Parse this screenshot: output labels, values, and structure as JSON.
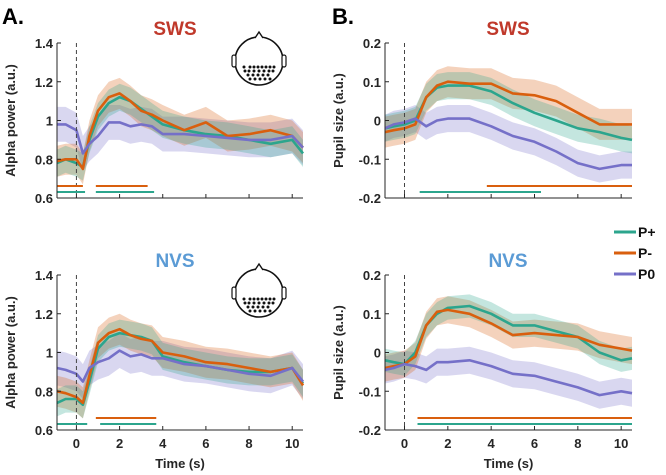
{
  "colors": {
    "P+": "#2ca58d",
    "P-": "#d95f0e",
    "P0": "#7570c8",
    "sws_title": "#c0392b",
    "nvs_title": "#5b9bd5"
  },
  "panel_labels": [
    "A.",
    "B."
  ],
  "legend": {
    "items": [
      {
        "name": "P+"
      },
      {
        "name": "P-"
      },
      {
        "name": "P0"
      }
    ],
    "position": "right-middle"
  },
  "chart_data": [
    {
      "id": "A-SWS",
      "type": "line",
      "title": "SWS",
      "xlabel": "",
      "ylabel": "Alpha power (a.u.)",
      "xlim": [
        -0.9,
        10.5
      ],
      "ylim": [
        0.6,
        1.4
      ],
      "xticks": [
        0,
        2,
        4,
        6,
        8,
        10
      ],
      "xtick_labels": [
        "",
        "",
        "",
        "",
        "",
        ""
      ],
      "yticks": [
        0.6,
        0.8,
        1,
        1.2,
        1.4
      ],
      "ytick_labels": [
        "0.6",
        "0.8",
        "1",
        "1.2",
        "1.4"
      ],
      "x": [
        -0.9,
        -0.5,
        0,
        0.3,
        0.6,
        1,
        1.5,
        2,
        2.5,
        3,
        3.5,
        4,
        5,
        6,
        7,
        8,
        9,
        10,
        10.5
      ],
      "series": [
        {
          "name": "P+",
          "values": [
            0.78,
            0.8,
            0.78,
            0.76,
            0.9,
            1.02,
            1.09,
            1.12,
            1.1,
            1.06,
            1.02,
            0.98,
            0.95,
            0.93,
            0.92,
            0.9,
            0.88,
            0.9,
            0.83
          ],
          "band": 0.07
        },
        {
          "name": "P-",
          "values": [
            0.79,
            0.8,
            0.8,
            0.75,
            0.92,
            1.05,
            1.12,
            1.14,
            1.1,
            1.05,
            1.03,
            1.0,
            0.95,
            0.99,
            0.92,
            0.93,
            0.95,
            0.92,
            0.86
          ],
          "band": 0.08
        },
        {
          "name": "P0",
          "values": [
            0.98,
            0.98,
            0.95,
            0.83,
            0.88,
            0.92,
            0.99,
            0.99,
            0.97,
            0.98,
            0.97,
            0.93,
            0.93,
            0.92,
            0.91,
            0.9,
            0.9,
            0.92,
            0.86
          ],
          "band": 0.09
        }
      ],
      "sig_bars": [
        {
          "series": "P-",
          "segments": [
            [
              -0.9,
              0.3
            ],
            [
              0.9,
              3.3
            ]
          ]
        },
        {
          "series": "P+",
          "segments": [
            [
              -0.9,
              0.4
            ],
            [
              0.9,
              3.6
            ]
          ]
        }
      ],
      "onset_line_x": 0,
      "head_inset": true
    },
    {
      "id": "B-SWS",
      "type": "line",
      "title": "SWS",
      "xlabel": "",
      "ylabel": "Pupil size (a.u.)",
      "xlim": [
        -0.9,
        10.5
      ],
      "ylim": [
        -0.2,
        0.2
      ],
      "xticks": [
        0,
        2,
        4,
        6,
        8,
        10
      ],
      "xtick_labels": [
        "",
        "",
        "",
        "",
        "",
        ""
      ],
      "yticks": [
        -0.2,
        -0.1,
        0,
        0.1,
        0.2
      ],
      "ytick_labels": [
        "-0.2",
        "-0.1",
        "0",
        "0.1",
        "0.2"
      ],
      "x": [
        -0.9,
        -0.5,
        0,
        0.5,
        1,
        1.5,
        2,
        3,
        4,
        5,
        6,
        7,
        8,
        9,
        10,
        10.5
      ],
      "series": [
        {
          "name": "P+",
          "values": [
            -0.02,
            -0.015,
            -0.01,
            0.0,
            0.06,
            0.085,
            0.09,
            0.09,
            0.075,
            0.045,
            0.02,
            0.0,
            -0.02,
            -0.03,
            -0.045,
            -0.05
          ],
          "band": 0.035
        },
        {
          "name": "P-",
          "values": [
            -0.03,
            -0.025,
            -0.02,
            -0.01,
            0.06,
            0.09,
            0.1,
            0.095,
            0.095,
            0.07,
            0.065,
            0.05,
            0.02,
            -0.01,
            -0.01,
            -0.01
          ],
          "band": 0.04
        },
        {
          "name": "P0",
          "values": [
            -0.02,
            -0.01,
            -0.005,
            0.005,
            -0.015,
            0.0,
            0.005,
            0.005,
            -0.015,
            -0.04,
            -0.055,
            -0.08,
            -0.11,
            -0.125,
            -0.115,
            -0.115
          ],
          "band": 0.035
        }
      ],
      "sig_bars": [
        {
          "series": "P-",
          "segments": [
            [
              3.8,
              10.5
            ]
          ]
        },
        {
          "series": "P+",
          "segments": [
            [
              0.7,
              6.3
            ]
          ]
        }
      ],
      "onset_line_x": 0,
      "head_inset": false
    },
    {
      "id": "A-NVS",
      "type": "line",
      "title": "NVS",
      "xlabel": "Time (s)",
      "ylabel": "Alpha power (a.u.)",
      "xlim": [
        -0.9,
        10.5
      ],
      "ylim": [
        0.6,
        1.4
      ],
      "xticks": [
        0,
        2,
        4,
        6,
        8,
        10
      ],
      "xtick_labels": [
        "0",
        "2",
        "4",
        "6",
        "8",
        "10"
      ],
      "yticks": [
        0.6,
        0.8,
        1,
        1.2,
        1.4
      ],
      "ytick_labels": [
        "0.6",
        "0.8",
        "1",
        "1.2",
        "1.4"
      ],
      "x": [
        -0.9,
        -0.5,
        0,
        0.3,
        0.6,
        1,
        1.5,
        2,
        2.5,
        3,
        3.5,
        4,
        5,
        6,
        7,
        8,
        9,
        10,
        10.5
      ],
      "series": [
        {
          "name": "P+",
          "values": [
            0.74,
            0.76,
            0.76,
            0.73,
            0.85,
            1.02,
            1.08,
            1.1,
            1.09,
            1.08,
            1.06,
            0.98,
            0.95,
            0.93,
            0.91,
            0.9,
            0.9,
            0.92,
            0.84
          ],
          "band": 0.07
        },
        {
          "name": "P-",
          "values": [
            0.8,
            0.79,
            0.77,
            0.74,
            0.88,
            1.05,
            1.1,
            1.12,
            1.09,
            1.07,
            1.06,
            1.0,
            0.98,
            0.95,
            0.94,
            0.92,
            0.9,
            0.92,
            0.83
          ],
          "band": 0.08
        },
        {
          "name": "P0",
          "values": [
            0.92,
            0.91,
            0.89,
            0.85,
            0.92,
            0.95,
            0.97,
            1.01,
            0.98,
            0.99,
            0.97,
            0.97,
            0.94,
            0.93,
            0.91,
            0.89,
            0.88,
            0.92,
            0.85
          ],
          "band": 0.09
        }
      ],
      "sig_bars": [
        {
          "series": "P-",
          "segments": [
            [
              0.9,
              3.7
            ]
          ]
        },
        {
          "series": "P+",
          "segments": [
            [
              -0.9,
              0.5
            ],
            [
              1.1,
              3.7
            ]
          ]
        }
      ],
      "onset_line_x": 0,
      "head_inset": true
    },
    {
      "id": "B-NVS",
      "type": "line",
      "title": "NVS",
      "xlabel": "Time (s)",
      "ylabel": "Pupil size (a.u.)",
      "xlim": [
        -0.9,
        10.5
      ],
      "ylim": [
        -0.2,
        0.2
      ],
      "xticks": [
        0,
        2,
        4,
        6,
        8,
        10
      ],
      "xtick_labels": [
        "0",
        "2",
        "4",
        "6",
        "8",
        "10"
      ],
      "yticks": [
        -0.2,
        -0.1,
        0,
        0.1,
        0.2
      ],
      "ytick_labels": [
        "-0.2",
        "-0.1",
        "0",
        "0.1",
        "0.2"
      ],
      "x": [
        -0.9,
        -0.5,
        0,
        0.5,
        1,
        1.5,
        2,
        3,
        4,
        5,
        6,
        7,
        8,
        9,
        10,
        10.5
      ],
      "series": [
        {
          "name": "P+",
          "values": [
            -0.02,
            -0.025,
            -0.03,
            0.0,
            0.07,
            0.1,
            0.115,
            0.12,
            0.1,
            0.07,
            0.07,
            0.055,
            0.04,
            0.0,
            -0.02,
            -0.015
          ],
          "band": 0.03
        },
        {
          "name": "P-",
          "values": [
            -0.04,
            -0.035,
            -0.03,
            -0.01,
            0.07,
            0.105,
            0.11,
            0.1,
            0.075,
            0.045,
            0.05,
            0.045,
            0.04,
            0.02,
            0.01,
            0.005
          ],
          "band": 0.035
        },
        {
          "name": "P0",
          "values": [
            -0.045,
            -0.04,
            -0.03,
            -0.035,
            -0.045,
            -0.025,
            -0.025,
            -0.02,
            -0.035,
            -0.055,
            -0.06,
            -0.075,
            -0.09,
            -0.11,
            -0.1,
            -0.105
          ],
          "band": 0.035
        }
      ],
      "sig_bars": [
        {
          "series": "P-",
          "segments": [
            [
              0.6,
              10.5
            ]
          ]
        },
        {
          "series": "P+",
          "segments": [
            [
              0.6,
              10.5
            ]
          ]
        }
      ],
      "onset_line_x": 0,
      "head_inset": false
    }
  ]
}
